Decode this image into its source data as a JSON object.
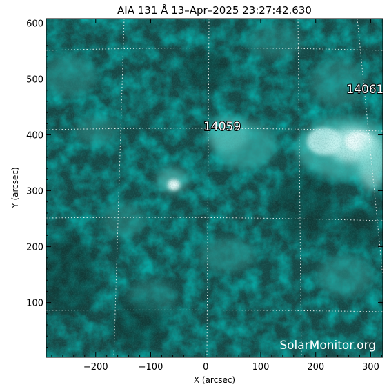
{
  "title": "AIA 131 Å 13–Apr–2025 23:27:42.630",
  "x_axis": {
    "label": "X (arcsec)",
    "range": [
      -290,
      322
    ],
    "ticks": [
      -200,
      -100,
      0,
      100,
      200,
      300
    ],
    "tick_labels": [
      "−200",
      "−100",
      "0",
      "100",
      "200",
      "300"
    ]
  },
  "y_axis": {
    "label": "Y (arcsec)",
    "range": [
      2,
      608
    ],
    "ticks": [
      100,
      200,
      300,
      400,
      500,
      600
    ],
    "tick_labels": [
      "100",
      "200",
      "300",
      "400",
      "500",
      "600"
    ]
  },
  "regions": [
    {
      "label": "14059",
      "x": 30,
      "y": 408
    },
    {
      "label": "14061",
      "x": 290,
      "y": 475
    }
  ],
  "watermark": "SolarMonitor.org",
  "colors": {
    "base": "#154846",
    "bright": "#2e9d98",
    "highlight": "#dafaf8",
    "grid": "#ffffff"
  }
}
